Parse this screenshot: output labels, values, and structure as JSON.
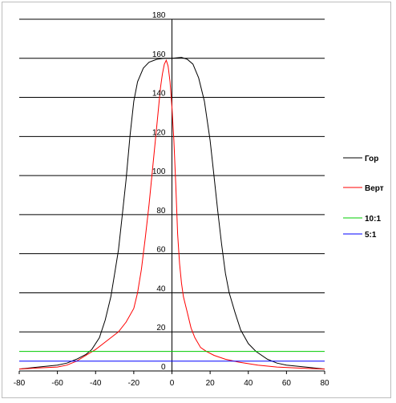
{
  "chart_data": {
    "type": "line",
    "xlim": [
      -80,
      80
    ],
    "ylim": [
      0,
      180
    ],
    "x_ticks": [
      -80,
      -60,
      -40,
      -20,
      0,
      20,
      40,
      60,
      80
    ],
    "y_ticks": [
      0,
      20,
      40,
      60,
      80,
      100,
      120,
      140,
      160,
      180
    ],
    "grid": "horizontal",
    "legend_position": "right",
    "series": [
      {
        "name": "Гор",
        "color": "#000000",
        "points": [
          [
            -80,
            1
          ],
          [
            -70,
            2
          ],
          [
            -60,
            3
          ],
          [
            -55,
            4
          ],
          [
            -50,
            6
          ],
          [
            -45,
            8.5
          ],
          [
            -42,
            11
          ],
          [
            -38,
            17
          ],
          [
            -35,
            26
          ],
          [
            -32,
            38
          ],
          [
            -30,
            50
          ],
          [
            -28,
            62
          ],
          [
            -26,
            80
          ],
          [
            -24,
            98
          ],
          [
            -22,
            120
          ],
          [
            -20,
            138
          ],
          [
            -18,
            148
          ],
          [
            -15,
            155
          ],
          [
            -12,
            158
          ],
          [
            -8,
            159.5
          ],
          [
            -4,
            160
          ],
          [
            0,
            160
          ],
          [
            5,
            160.5
          ],
          [
            8,
            159.5
          ],
          [
            11,
            157
          ],
          [
            14,
            150
          ],
          [
            17,
            138
          ],
          [
            20,
            118
          ],
          [
            22,
            100
          ],
          [
            24,
            82
          ],
          [
            26,
            65
          ],
          [
            28,
            50
          ],
          [
            30,
            40
          ],
          [
            33,
            30
          ],
          [
            36,
            21
          ],
          [
            40,
            14
          ],
          [
            44,
            10
          ],
          [
            50,
            6
          ],
          [
            55,
            4
          ],
          [
            60,
            3
          ],
          [
            70,
            2
          ],
          [
            80,
            1
          ]
        ]
      },
      {
        "name": "Верт",
        "color": "#ff0000",
        "points": [
          [
            -80,
            1
          ],
          [
            -70,
            1.5
          ],
          [
            -60,
            2
          ],
          [
            -55,
            3
          ],
          [
            -50,
            5
          ],
          [
            -45,
            8
          ],
          [
            -40,
            11
          ],
          [
            -36,
            14
          ],
          [
            -32,
            17
          ],
          [
            -28,
            20
          ],
          [
            -24,
            25
          ],
          [
            -20,
            32
          ],
          [
            -18,
            40
          ],
          [
            -16,
            52
          ],
          [
            -14,
            68
          ],
          [
            -12,
            85
          ],
          [
            -10,
            105
          ],
          [
            -8,
            125
          ],
          [
            -6,
            145
          ],
          [
            -5,
            152
          ],
          [
            -4,
            157
          ],
          [
            -3,
            159
          ],
          [
            -2,
            156
          ],
          [
            -1,
            148
          ],
          [
            0,
            135
          ],
          [
            1,
            118
          ],
          [
            2,
            95
          ],
          [
            3,
            70
          ],
          [
            4,
            55
          ],
          [
            5,
            45
          ],
          [
            6,
            38
          ],
          [
            8,
            30
          ],
          [
            10,
            22
          ],
          [
            12,
            17
          ],
          [
            15,
            12
          ],
          [
            18,
            10
          ],
          [
            22,
            8
          ],
          [
            28,
            6
          ],
          [
            35,
            4.5
          ],
          [
            45,
            3
          ],
          [
            55,
            2
          ],
          [
            65,
            1.5
          ],
          [
            80,
            1
          ]
        ]
      },
      {
        "name": "10:1",
        "color": "#00cc00",
        "points": [
          [
            -80,
            10
          ],
          [
            80,
            10
          ]
        ]
      },
      {
        "name": "5:1",
        "color": "#0000ff",
        "points": [
          [
            -80,
            5
          ],
          [
            80,
            5
          ]
        ]
      }
    ]
  }
}
